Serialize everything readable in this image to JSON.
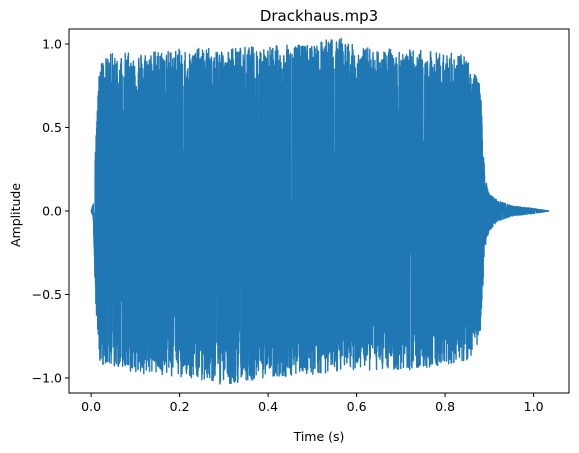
{
  "chart_data": {
    "type": "line",
    "title": "Drackhaus.mp3",
    "xlabel": "Time (s)",
    "ylabel": "Amplitude",
    "xlim": [
      -0.05,
      1.08
    ],
    "ylim": [
      -1.09,
      1.09
    ],
    "x_ticks": [
      0.0,
      0.2,
      0.4,
      0.6,
      0.8,
      1.0
    ],
    "x_tick_labels": [
      "0.0",
      "0.2",
      "0.4",
      "0.6",
      "0.8",
      "1.0"
    ],
    "y_ticks": [
      -1.0,
      -0.5,
      0.0,
      0.5,
      1.0
    ],
    "y_tick_labels": [
      "−1.0",
      "−0.5",
      "0.0",
      "0.5",
      "1.0"
    ],
    "grid": false,
    "legend": "none",
    "series": [
      {
        "color": "#1f77b4",
        "duration": 1.035,
        "envelope": {
          "t": [
            0.0,
            0.005,
            0.01,
            0.02,
            0.05,
            0.1,
            0.2,
            0.3,
            0.4,
            0.5,
            0.56,
            0.6,
            0.7,
            0.8,
            0.85,
            0.88,
            0.89,
            0.9,
            0.92,
            0.95,
            1.0,
            1.035
          ],
          "pos": [
            0.0,
            0.05,
            0.45,
            0.9,
            0.95,
            0.95,
            0.97,
            0.98,
            0.99,
            1.0,
            1.05,
            0.98,
            0.97,
            0.95,
            0.93,
            0.75,
            0.2,
            0.1,
            0.06,
            0.03,
            0.015,
            0.0
          ],
          "neg": [
            0.0,
            -0.05,
            -0.55,
            -0.92,
            -0.93,
            -0.97,
            -1.0,
            -1.04,
            -1.0,
            -0.98,
            -0.96,
            -0.95,
            -0.96,
            -0.92,
            -0.9,
            -0.78,
            -0.22,
            -0.12,
            -0.06,
            -0.03,
            -0.015,
            0.0
          ]
        }
      }
    ]
  }
}
